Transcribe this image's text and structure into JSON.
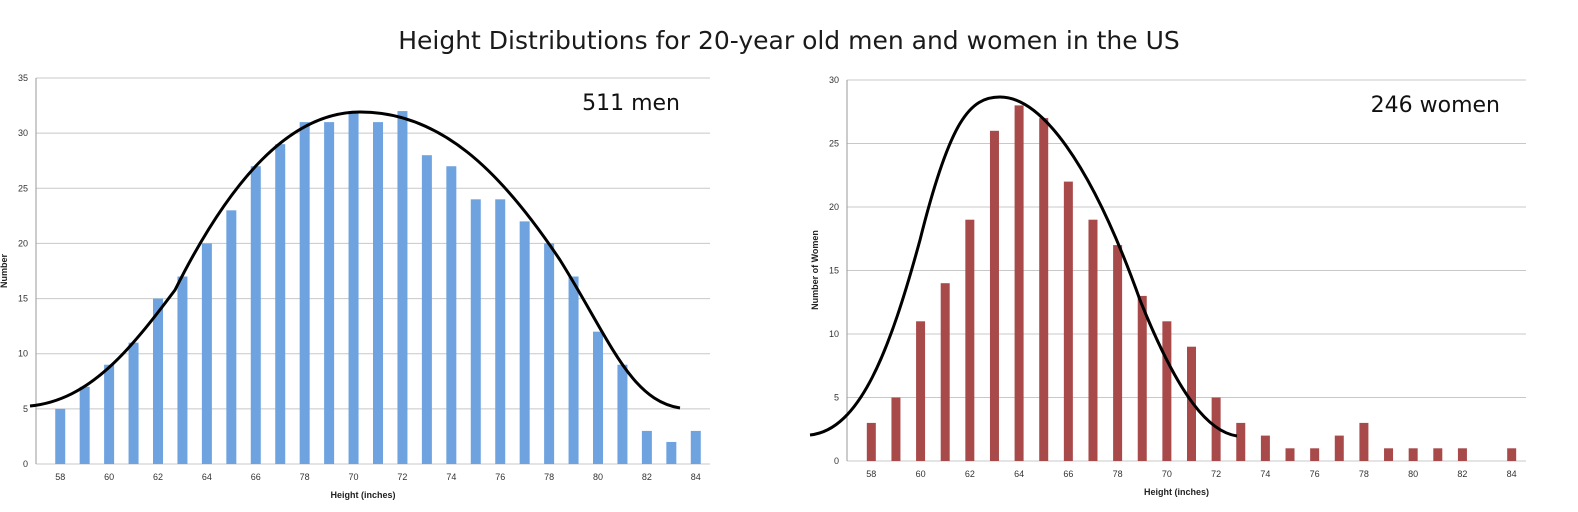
{
  "title": "Height Distributions for 20-year old men and women in the US",
  "chart_data": [
    {
      "type": "bar",
      "annotation": "511 men",
      "xlabel": "Height (inches)",
      "ylabel": "Number",
      "ylim": [
        0,
        35
      ],
      "yticks": [
        0,
        5,
        10,
        15,
        20,
        25,
        30,
        35
      ],
      "xtick_labels": [
        "58",
        "60",
        "62",
        "64",
        "66",
        "78",
        "70",
        "72",
        "74",
        "76",
        "78",
        "80",
        "82",
        "84"
      ],
      "values": [
        5,
        7,
        9,
        11,
        15,
        17,
        20,
        23,
        27,
        29,
        31,
        31,
        32,
        31,
        32,
        28,
        27,
        24,
        24,
        22,
        20,
        17,
        12,
        9,
        3,
        2,
        3
      ],
      "grid": true,
      "colors": {
        "bar": "#6fa3e0",
        "curve": "#000000"
      },
      "fit_curve": true
    },
    {
      "type": "bar",
      "annotation": "246 women",
      "xlabel": "Height (inches)",
      "ylabel": "Number of Women",
      "ylim": [
        0,
        30
      ],
      "yticks": [
        0,
        5,
        10,
        15,
        20,
        25,
        30
      ],
      "xtick_labels": [
        "58",
        "60",
        "62",
        "64",
        "66",
        "78",
        "70",
        "72",
        "74",
        "76",
        "78",
        "80",
        "82",
        "84"
      ],
      "values": [
        3,
        5,
        11,
        14,
        19,
        26,
        28,
        27,
        22,
        19,
        17,
        13,
        11,
        9,
        5,
        3,
        2,
        1,
        1,
        2,
        3,
        1,
        1,
        1,
        1,
        0,
        1
      ],
      "grid": true,
      "colors": {
        "bar": "#a84a4a",
        "curve": "#000000"
      },
      "fit_curve": true
    }
  ]
}
